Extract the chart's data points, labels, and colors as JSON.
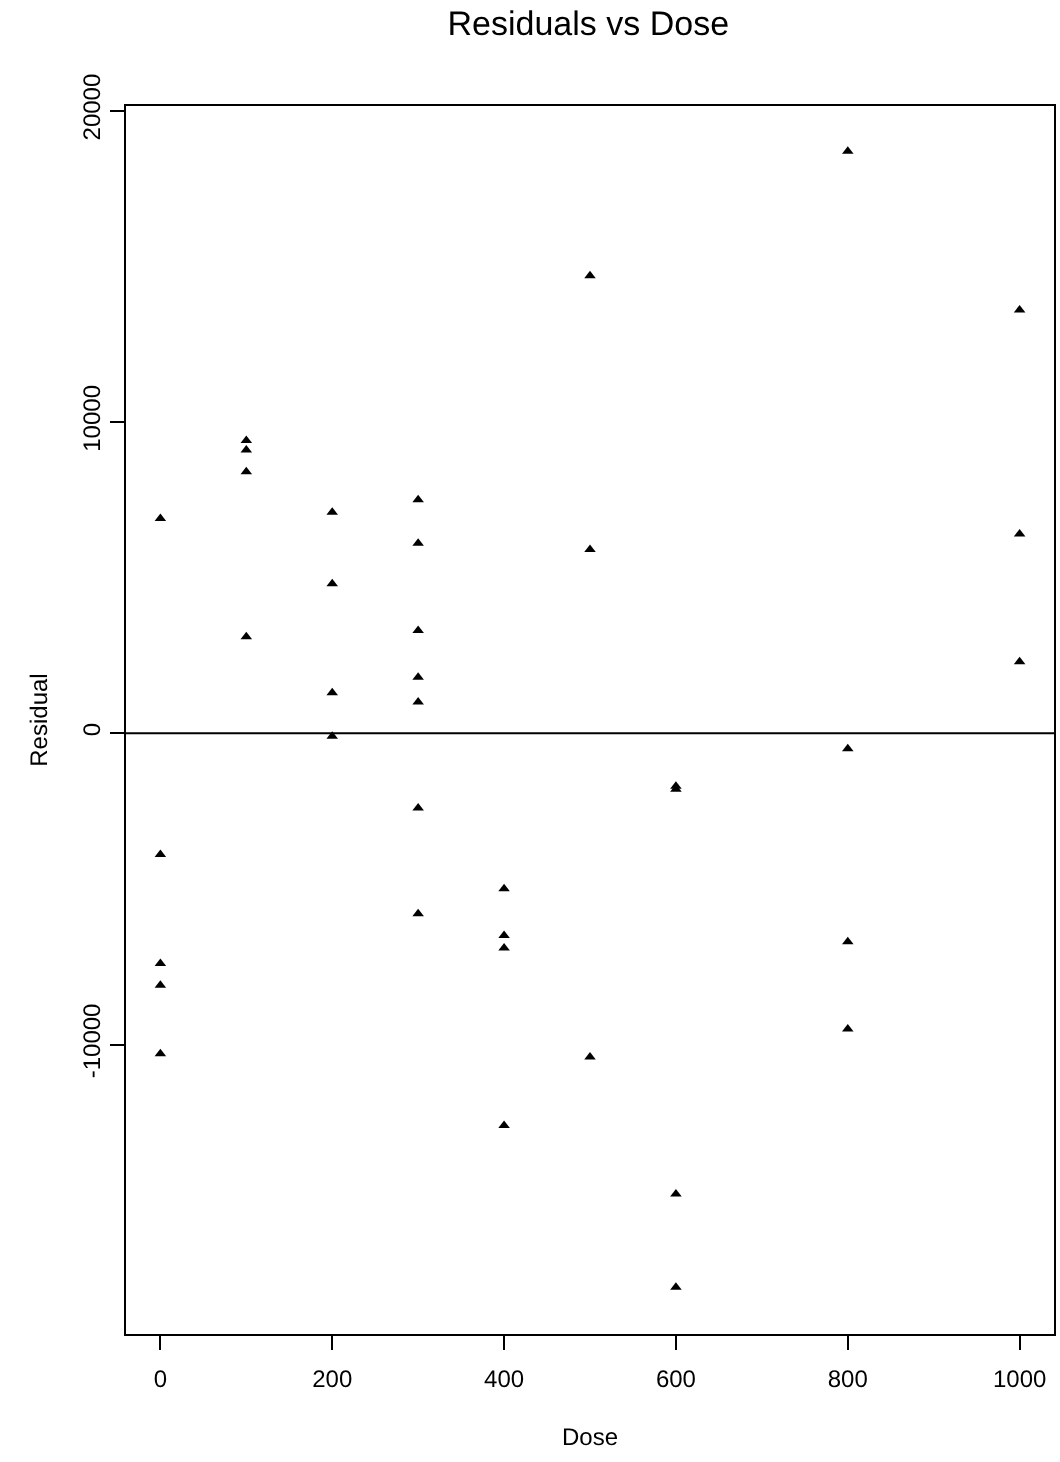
{
  "chart_data": {
    "type": "scatter",
    "title": "Residuals vs Dose",
    "xlabel": "Dose",
    "ylabel": "Residual",
    "x": [
      0,
      0,
      0,
      0,
      0,
      100,
      100,
      100,
      100,
      200,
      200,
      200,
      200,
      300,
      300,
      300,
      300,
      300,
      300,
      300,
      400,
      400,
      400,
      400,
      500,
      500,
      500,
      600,
      600,
      600,
      600,
      800,
      800,
      800,
      800,
      1000,
      1000,
      1000
    ],
    "values": [
      6900,
      -3900,
      -7400,
      -8100,
      -10300,
      9400,
      9100,
      8400,
      3100,
      7100,
      4800,
      1300,
      -100,
      7500,
      6100,
      3300,
      1800,
      1000,
      -2400,
      -5800,
      -5000,
      -6500,
      -6900,
      -12600,
      14700,
      5900,
      -10400,
      -1700,
      -1800,
      -14800,
      -17800,
      18700,
      -500,
      -6700,
      -9500,
      13600,
      6400,
      2300
    ],
    "color": "#000000",
    "marker": "triangle",
    "xlim": [
      -40,
      1040
    ],
    "ylim": [
      -19300,
      20150
    ],
    "xticks": [
      0,
      200,
      400,
      600,
      800,
      1000
    ],
    "yticks": [
      -10000,
      0,
      10000,
      20000
    ],
    "ref_lines": [
      {
        "axis": "y",
        "value": 0,
        "color": "#000000"
      }
    ]
  }
}
